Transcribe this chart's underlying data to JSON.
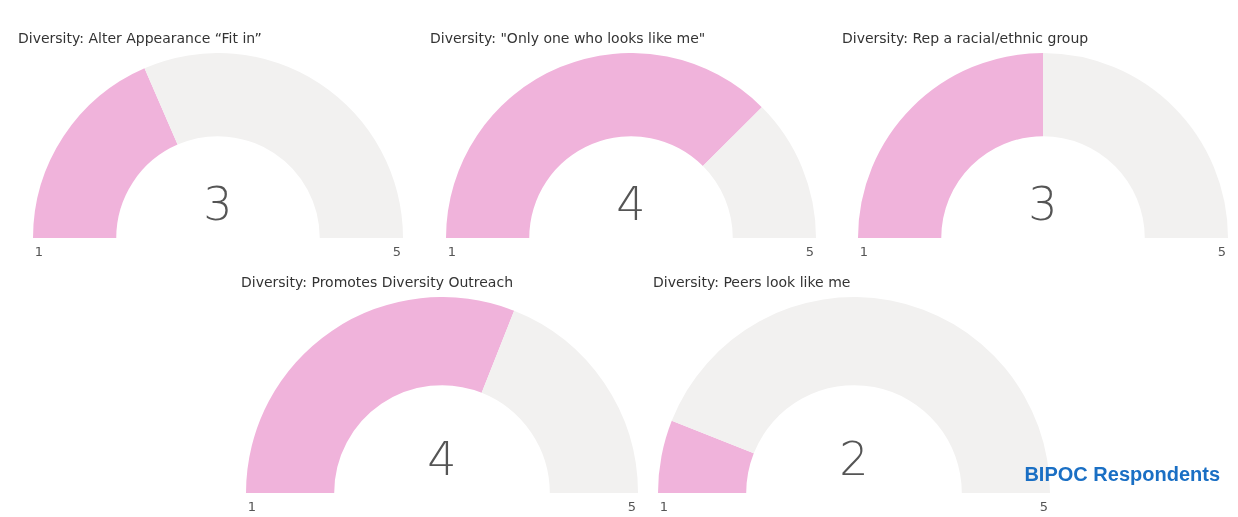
{
  "chart_data": [
    {
      "type": "donut",
      "title": "Diversity: Alter Appearance “Fit in”",
      "categories": [
        null,
        null
      ],
      "values": [
        37,
        63
      ],
      "colors": [
        "#f0b3db",
        "#f2f1f0"
      ],
      "annotations": [
        "3",
        "1",
        "5"
      ]
    },
    {
      "type": "donut",
      "title": "Diversity: \"Only one who looks like me\"",
      "categories": [
        null,
        null
      ],
      "values": [
        75,
        25
      ],
      "colors": [
        "#f0b3db",
        "#f2f1f0"
      ],
      "annotations": [
        "4",
        "1",
        "5"
      ]
    },
    {
      "type": "donut",
      "title": "Diversity: Rep a racial/ethnic group",
      "categories": [
        null,
        null
      ],
      "values": [
        50,
        50
      ],
      "colors": [
        "#f0b3db",
        "#f2f1f0"
      ],
      "annotations": [
        "3",
        "1",
        "5"
      ]
    },
    {
      "type": "donut",
      "title": "Diversity: Promotes Diversity Outreach",
      "categories": [
        null,
        null
      ],
      "values": [
        62,
        38
      ],
      "colors": [
        "#f0b3db",
        "#f2f1f0"
      ],
      "annotations": [
        "4",
        "1",
        "5"
      ]
    },
    {
      "type": "donut",
      "title": "Diversity: Peers look like me",
      "categories": [
        null,
        null
      ],
      "values": [
        12,
        88
      ],
      "colors": [
        "#f0b3db",
        "#f2f1f0"
      ],
      "annotations": [
        "2",
        "1",
        "5"
      ]
    },
    {
      "type": "other",
      "title": "BIPOC Respondents"
    }
  ]
}
